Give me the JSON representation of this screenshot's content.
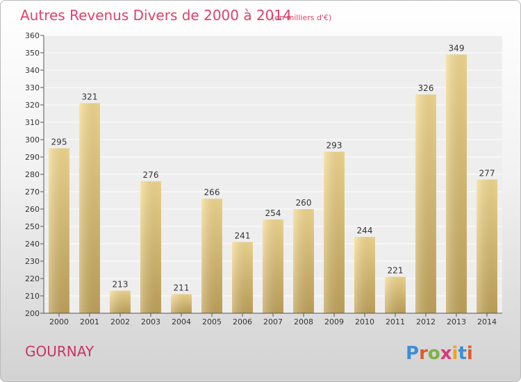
{
  "chart_data": {
    "type": "bar",
    "title": "Autres Revenus Divers de 2000 à 2014",
    "subtitle": "(en milliers d'€)",
    "categories": [
      "2000",
      "2001",
      "2002",
      "2003",
      "2004",
      "2005",
      "2006",
      "2007",
      "2008",
      "2009",
      "2010",
      "2011",
      "2012",
      "2013",
      "2014"
    ],
    "values": [
      295,
      321,
      213,
      276,
      211,
      266,
      241,
      254,
      260,
      293,
      244,
      221,
      326,
      349,
      277
    ],
    "ylim": [
      200,
      360
    ],
    "yticks": [
      200,
      210,
      220,
      230,
      240,
      250,
      260,
      270,
      280,
      290,
      300,
      310,
      320,
      330,
      340,
      350,
      360
    ],
    "grid": true,
    "bar_color": "#e8cf86"
  },
  "location_label": "GOURNAY",
  "logo": {
    "text": "Proxiti",
    "letter_colors": [
      "#3a8fd6",
      "#e25a2a",
      "#7cb342",
      "#d63b7a",
      "#f2a31b",
      "#3a8fd6",
      "#e25a2a"
    ]
  }
}
